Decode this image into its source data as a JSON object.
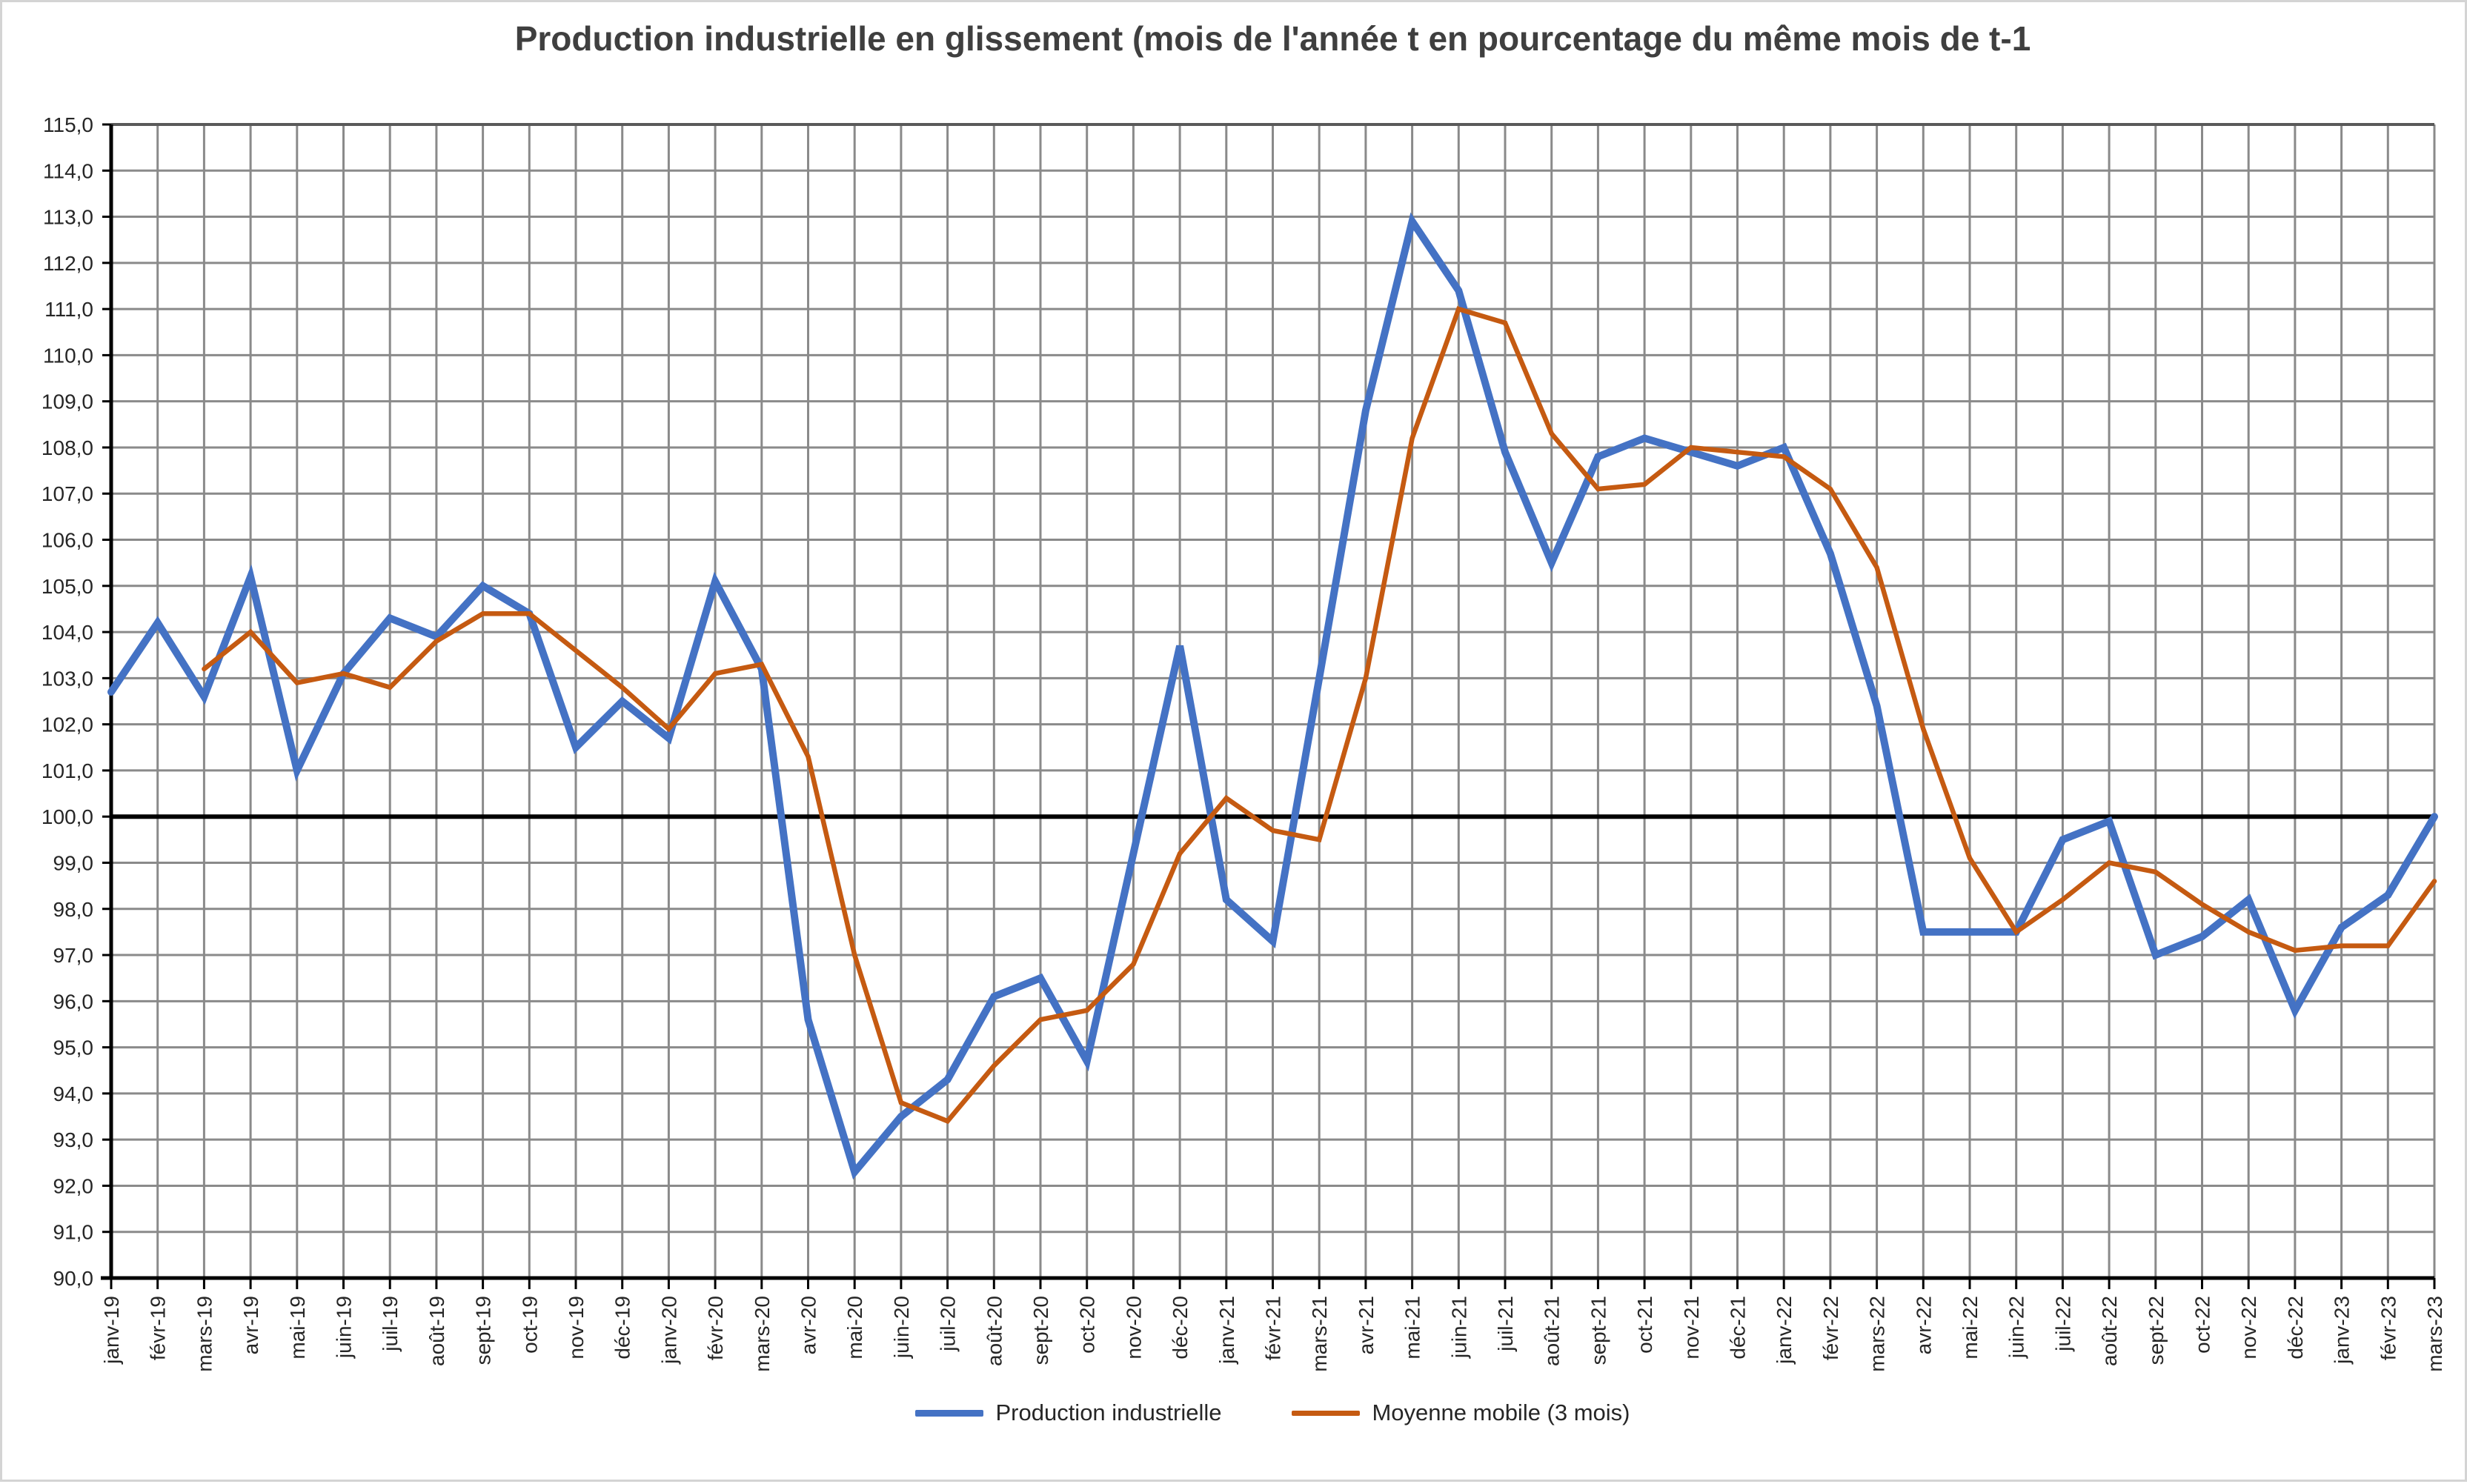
{
  "chart_data": {
    "type": "line",
    "title": "Production industrielle en glissement (mois de l'année t en pourcentage du même mois de t-1",
    "categories": [
      "janv-19",
      "févr-19",
      "mars-19",
      "avr-19",
      "mai-19",
      "juin-19",
      "juil-19",
      "août-19",
      "sept-19",
      "oct-19",
      "nov-19",
      "déc-19",
      "janv-20",
      "févr-20",
      "mars-20",
      "avr-20",
      "mai-20",
      "juin-20",
      "juil-20",
      "août-20",
      "sept-20",
      "oct-20",
      "nov-20",
      "déc-20",
      "janv-21",
      "févr-21",
      "mars-21",
      "avr-21",
      "mai-21",
      "juin-21",
      "juil-21",
      "août-21",
      "sept-21",
      "oct-21",
      "nov-21",
      "déc-21",
      "janv-22",
      "févr-22",
      "mars-22",
      "avr-22",
      "mai-22",
      "juin-22",
      "juil-22",
      "août-22",
      "sept-22",
      "oct-22",
      "nov-22",
      "déc-22",
      "janv-23",
      "févr-23",
      "mars-23"
    ],
    "series": [
      {
        "name": "Production industrielle",
        "color": "#4472C4",
        "stroke_width": 10,
        "values": [
          102.7,
          104.2,
          102.6,
          105.2,
          101.0,
          103.1,
          104.3,
          103.9,
          105.0,
          104.4,
          101.5,
          102.5,
          101.7,
          105.1,
          103.2,
          95.6,
          92.3,
          93.5,
          94.3,
          96.1,
          96.5,
          94.7,
          99.2,
          103.7,
          98.2,
          97.3,
          103.0,
          108.8,
          112.9,
          111.4,
          107.9,
          105.5,
          107.8,
          108.2,
          107.9,
          107.6,
          108.0,
          105.7,
          102.4,
          97.5,
          97.5,
          97.5,
          99.5,
          99.9,
          97.0,
          97.4,
          98.2,
          95.8,
          97.6,
          98.3,
          100.0
        ]
      },
      {
        "name": "Moyenne mobile (3 mois)",
        "color": "#C55A11",
        "stroke_width": 6.5,
        "values": [
          null,
          null,
          103.2,
          104.0,
          102.9,
          103.1,
          102.8,
          103.8,
          104.4,
          104.4,
          103.6,
          102.8,
          101.9,
          103.1,
          103.3,
          101.3,
          97.0,
          93.8,
          93.4,
          94.6,
          95.6,
          95.8,
          96.8,
          99.2,
          100.4,
          99.7,
          99.5,
          103.0,
          108.2,
          111.0,
          110.7,
          108.3,
          107.1,
          107.2,
          108.0,
          107.9,
          107.8,
          107.1,
          105.4,
          101.9,
          99.1,
          97.5,
          98.2,
          99.0,
          98.8,
          98.1,
          97.5,
          97.1,
          97.2,
          97.2,
          98.6
        ]
      }
    ],
    "ylim": [
      90,
      115
    ],
    "ytick_step": 1,
    "y_tick_labels": [
      "115,0",
      "114,0",
      "113,0",
      "112,0",
      "111,0",
      "110,0",
      "109,0",
      "108,0",
      "107,0",
      "106,0",
      "105,0",
      "104,0",
      "103,0",
      "102,0",
      "101,0",
      "100,0",
      "99,0",
      "98,0",
      "97,0",
      "96,0",
      "95,0",
      "94,0",
      "93,0",
      "92,0",
      "91,0",
      "90,0"
    ],
    "baseline": {
      "value": 100.0,
      "color": "#000000",
      "width": 6
    },
    "grid": {
      "color": "#8a8a8a",
      "width": 3,
      "show": true
    },
    "axis_color": "#000000",
    "plot_border_top_color": "#595959",
    "tick_label_color": "#262626",
    "legend_position": "bottom-center"
  }
}
